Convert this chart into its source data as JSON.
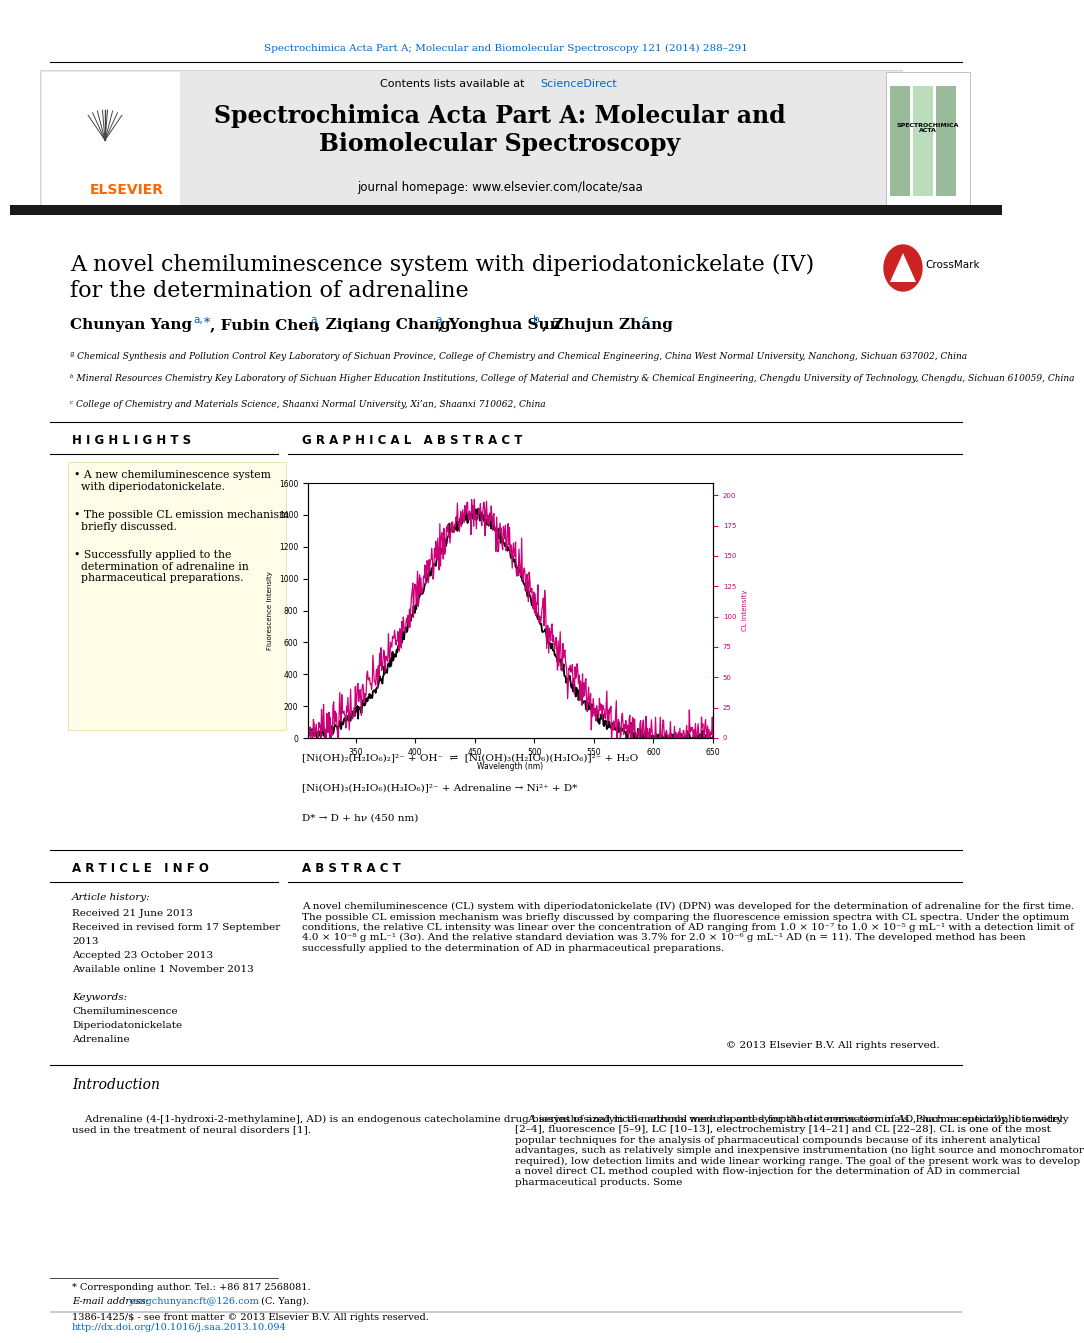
{
  "page_bg": "#ffffff",
  "top_journal_ref": "Spectrochimica Acta Part A; Molecular and Biomolecular Spectroscopy 121 (2014) 288–291",
  "journal_header_bg": "#e8e8e8",
  "journal_title": "Spectrochimica Acta Part A: Molecular and\nBiomolecular Spectroscopy",
  "contents_text": "Contents lists available at ",
  "sciencedirect_label": "ScienceDirect",
  "homepage_text": "journal homepage: www.elsevier.com/locate/saa",
  "sciencedirect_color": "#0066cc",
  "elsevier_color": "#ff6600",
  "paper_title": "A novel chemiluminescence system with diperiodatonickelate (IV)\nfor the determination of adrenaline",
  "affil_a": "ª Chemical Synthesis and Pollution Control Key Laboratory of Sichuan Province, College of Chemistry and Chemical Engineering, China West Normal University, Nanchong, Sichuan 637002, China",
  "affil_b": "ᵇ Mineral Resources Chemistry Key Laboratory of Sichuan Higher Education Institutions, College of Material and Chemistry & Chemical Engineering, Chengdu University of Technology, Chengdu, Sichuan 610059, China",
  "affil_c": "ᶜ College of Chemistry and Materials Science, Shaanxi Normal University, Xi’an, Shaanxi 710062, China",
  "highlights_title": "H I G H L I G H T S",
  "highlights": [
    "A new chemiluminescence system\n  with diperiodatonickelate.",
    "The possible CL emission mechanism\n  briefly discussed.",
    "Successfully applied to the\n  determination of adrenaline in\n  pharmaceutical preparations."
  ],
  "graphical_abstract_title": "G R A P H I C A L   A B S T R A C T",
  "reaction1": "[Ni(OH)₂(H₂IO₆)₂]²⁻ + OH⁻  ⇌  [Ni(OH)₃(H₂IO₆)(H₃IO₆)]²⁻ + H₂O",
  "reaction2": "[Ni(OH)₃(H₂IO₆)(H₃IO₆)]²⁻ + Adrenaline → Ni²⁺ + D*",
  "reaction3": "D* → D + hν (450 nm)",
  "article_info_title": "A R T I C L E   I N F O",
  "article_history_label": "Article history:",
  "received": "Received 21 June 2013",
  "revised1": "Received in revised form 17 September",
  "revised2": "2013",
  "accepted": "Accepted 23 October 2013",
  "available": "Available online 1 November 2013",
  "keywords_title": "Keywords:",
  "keywords": [
    "Chemiluminescence",
    "Diperiodatonickelate",
    "Adrenaline"
  ],
  "abstract_title": "A B S T R A C T",
  "abstract_text": "A novel chemiluminescence (CL) system with diperiodatonickelate (IV) (DPN) was developed for the determination of adrenaline for the first time. The possible CL emission mechanism was briefly discussed by comparing the fluorescence emission spectra with CL spectra. Under the optimum conditions, the relative CL intensity was linear over the concentration of AD ranging from 1.0 × 10⁻⁷ to 1.0 × 10⁻⁵ g mL⁻¹ with a detection limit of 4.0 × 10⁻⁸ g mL⁻¹ (3σ). And the relative standard deviation was 3.7% for 2.0 × 10⁻⁶ g mL⁻¹ AD (n = 11). The developed method has been successfully applied to the determination of AD in pharmaceutical preparations.",
  "copyright": "© 2013 Elsevier B.V. All rights reserved.",
  "intro_title": "Introduction",
  "intro_left": "    Adrenaline (4-[1-hydroxi-2-methylamine], AD) is an endogenous catecholamine drug biosynthesized in the adrenal medulla and sympathetic nerve terminals. Pharmaceutically, it is widely used in the treatment of neural disorders [1].",
  "intro_right": "    A series of analytical methods were reported for the determination of AD, such as spectrophotometry [2–4], fluorescence [5–9], LC [10–13], electrochemistry [14–21] and CL [22–28]. CL is one of the most popular techniques for the analysis of pharmaceutical compounds because of its inherent analytical advantages, such as relatively simple and inexpensive instrumentation (no light source and monochromator required), low detection limits and wide linear working range. The goal of the present work was to develop a novel direct CL method coupled with flow-injection for the determination of AD in commercial pharmaceutical products. Some",
  "footer_corr": "* Corresponding author. Tel.: +86 817 2568081.",
  "footer_email_label": "E-mail address: ",
  "footer_email": "yangchunyancft@126.com",
  "footer_email_name": " (C. Yang).",
  "footer_text1": "1386-1425/$ - see front matter © 2013 Elsevier B.V. All rights reserved.",
  "footer_text2": "http://dx.doi.org/10.1016/j.saa.2013.10.094",
  "footer_link_color": "#0066cc",
  "black_bar_color": "#1a1a1a"
}
